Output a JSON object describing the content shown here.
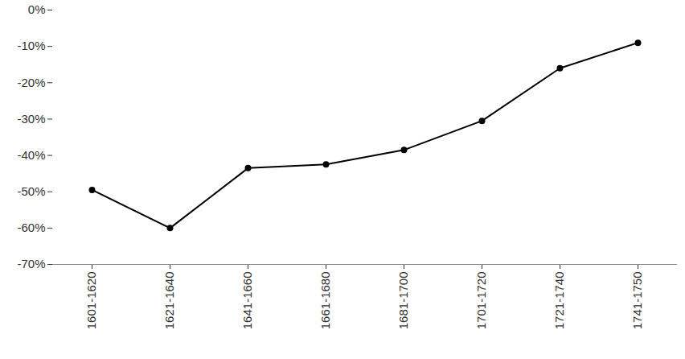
{
  "chart_data": {
    "type": "line",
    "categories": [
      "1601-1620",
      "1621-1640",
      "1641-1660",
      "1661-1680",
      "1681-1700",
      "1701-1720",
      "1721-1740",
      "1741-1750"
    ],
    "values": [
      -49.5,
      -60,
      -43.5,
      -42.5,
      -38.5,
      -30.5,
      -16,
      -9
    ],
    "color": "#000000",
    "marker": "circle",
    "ylim": [
      -70,
      0
    ],
    "yticks": [
      {
        "value": 0,
        "label": "0%"
      },
      {
        "value": -10,
        "label": "-10%"
      },
      {
        "value": -20,
        "label": "-20%"
      },
      {
        "value": -30,
        "label": "-30%"
      },
      {
        "value": -40,
        "label": "-40%"
      },
      {
        "value": -50,
        "label": "-50%"
      },
      {
        "value": -60,
        "label": "-60%"
      },
      {
        "value": -70,
        "label": "-70%"
      }
    ],
    "grid": false
  }
}
